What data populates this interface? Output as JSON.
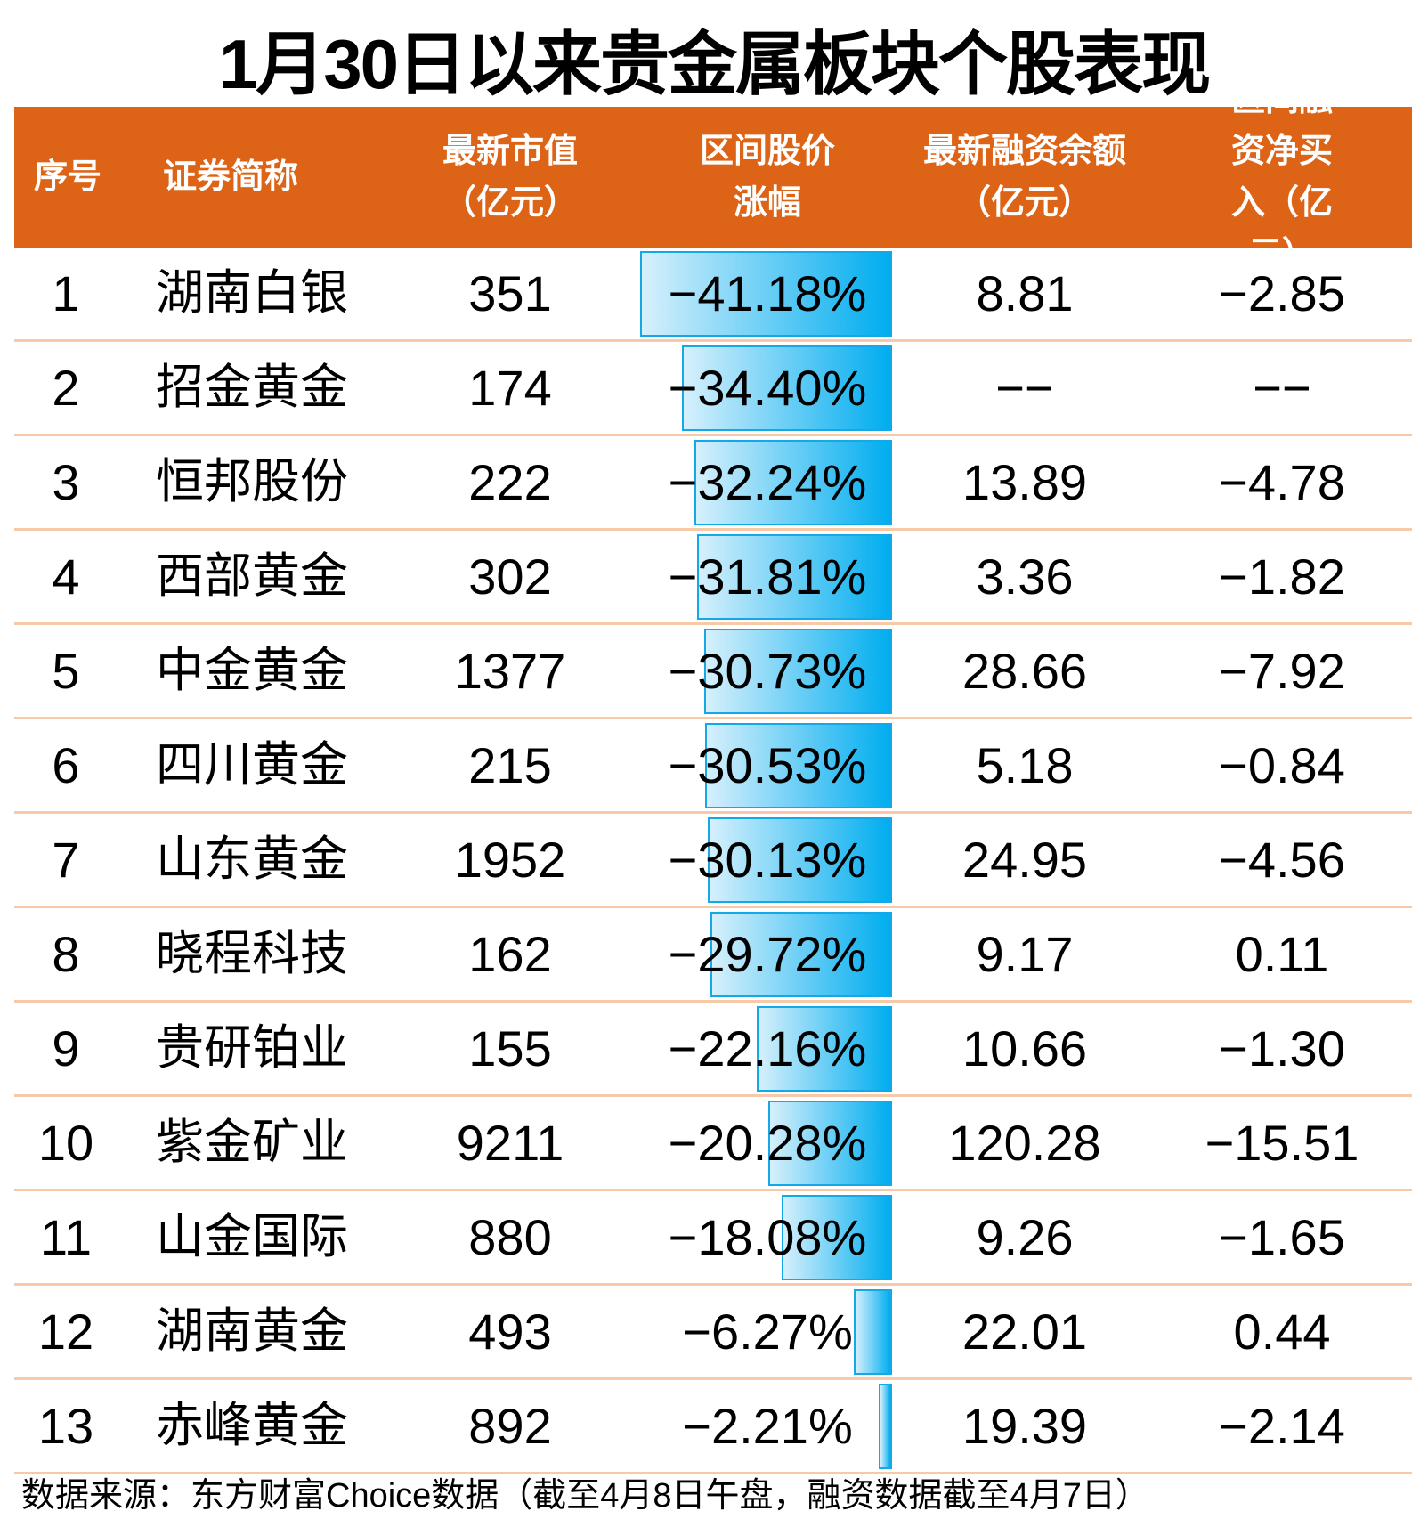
{
  "title": "1月30日以来贵金属板块个股表现",
  "header": {
    "no": "序号",
    "name": "证券简称",
    "mcap": [
      "最新市值",
      "（亿元）"
    ],
    "chg": [
      "区间股价",
      "涨幅"
    ],
    "margin": [
      "最新融资余额",
      "（亿元）"
    ],
    "net": [
      "区间融资净买",
      "入（亿元）"
    ]
  },
  "colors": {
    "header_bg": "#dd6416",
    "bar": "#00adef",
    "divider": "#f6c9a8"
  },
  "rows": [
    {
      "no": "1",
      "name": "湖南白银",
      "mcap": "351",
      "chg": "−41.18%",
      "chg_value": -41.18,
      "margin": "8.81",
      "net": "−2.85"
    },
    {
      "no": "2",
      "name": "招金黄金",
      "mcap": "174",
      "chg": "−34.40%",
      "chg_value": -34.4,
      "margin": "−−",
      "net": "−−"
    },
    {
      "no": "3",
      "name": "恒邦股份",
      "mcap": "222",
      "chg": "−32.24%",
      "chg_value": -32.24,
      "margin": "13.89",
      "net": "−4.78"
    },
    {
      "no": "4",
      "name": "西部黄金",
      "mcap": "302",
      "chg": "−31.81%",
      "chg_value": -31.81,
      "margin": "3.36",
      "net": "−1.82"
    },
    {
      "no": "5",
      "name": "中金黄金",
      "mcap": "1377",
      "chg": "−30.73%",
      "chg_value": -30.73,
      "margin": "28.66",
      "net": "−7.92"
    },
    {
      "no": "6",
      "name": "四川黄金",
      "mcap": "215",
      "chg": "−30.53%",
      "chg_value": -30.53,
      "margin": "5.18",
      "net": "−0.84"
    },
    {
      "no": "7",
      "name": "山东黄金",
      "mcap": "1952",
      "chg": "−30.13%",
      "chg_value": -30.13,
      "margin": "24.95",
      "net": "−4.56"
    },
    {
      "no": "8",
      "name": "晓程科技",
      "mcap": "162",
      "chg": "−29.72%",
      "chg_value": -29.72,
      "margin": "9.17",
      "net": "0.11"
    },
    {
      "no": "9",
      "name": "贵研铂业",
      "mcap": "155",
      "chg": "−22.16%",
      "chg_value": -22.16,
      "margin": "10.66",
      "net": "−1.30"
    },
    {
      "no": "10",
      "name": "紫金矿业",
      "mcap": "9211",
      "chg": "−20.28%",
      "chg_value": -20.28,
      "margin": "120.28",
      "net": "−15.51"
    },
    {
      "no": "11",
      "name": "山金国际",
      "mcap": "880",
      "chg": "−18.08%",
      "chg_value": -18.08,
      "margin": "9.26",
      "net": "−1.65"
    },
    {
      "no": "12",
      "name": "湖南黄金",
      "mcap": "493",
      "chg": "−6.27%",
      "chg_value": -6.27,
      "margin": "22.01",
      "net": "0.44"
    },
    {
      "no": "13",
      "name": "赤峰黄金",
      "mcap": "892",
      "chg": "−2.21%",
      "chg_value": -2.21,
      "margin": "19.39",
      "net": "−2.14"
    }
  ],
  "footer": "数据来源：东方财富Choice数据（截至4月8日午盘，融资数据截至4月7日）"
}
